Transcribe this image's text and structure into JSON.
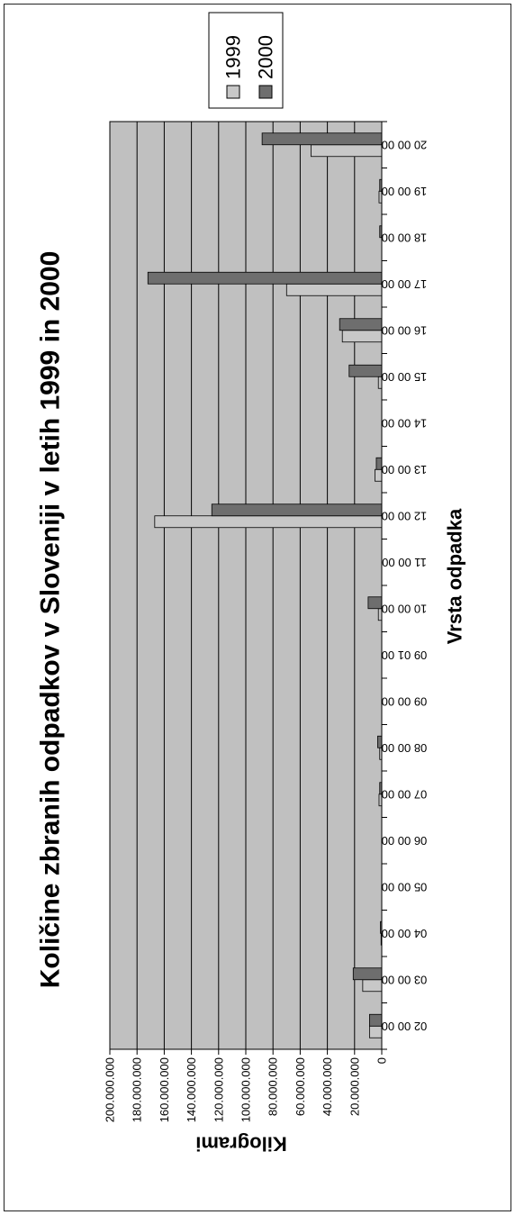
{
  "chart_data": {
    "type": "bar",
    "title": "Količine zbranih odpadkov v Sloveniji v letih 1999 in 2000",
    "xlabel": "Vrsta odpadka",
    "ylabel": "Kilogrami",
    "orientation": "rotated-90-clockwise",
    "ylim": [
      0,
      200000000
    ],
    "ytick_labels": [
      "0",
      "20.000.000",
      "40.000.000",
      "60.000.000",
      "80.000.000",
      "100.000.000",
      "120.000.000",
      "140.000.000",
      "160.000.000",
      "180.000.000",
      "200.000.000"
    ],
    "categories": [
      "02 00 00",
      "03 00 00",
      "04 00 00",
      "05 00 00",
      "06 00 00",
      "07 00 00",
      "08 00 00",
      "09 00 00",
      "09 01 00",
      "10 00 00",
      "11 00 00",
      "12 00 00",
      "13 00 00",
      "14 00 00",
      "15 00 00",
      "16 00 00",
      "17 00 00",
      "18 00 00",
      "19 00 00",
      "20 00 00"
    ],
    "series": [
      {
        "name": "1999",
        "color": "#c8c8c8",
        "values": [
          9000000,
          14000000,
          500000,
          0,
          0,
          2000000,
          1500000,
          0,
          0,
          2500000,
          0,
          167000000,
          5000000,
          0,
          2500000,
          29000000,
          70000000,
          0,
          2000000,
          52000000
        ]
      },
      {
        "name": "2000",
        "color": "#6e6e6e",
        "values": [
          9000000,
          21000000,
          1000000,
          0,
          0,
          1500000,
          3000000,
          0,
          0,
          10000000,
          0,
          125000000,
          4000000,
          0,
          24000000,
          31000000,
          172000000,
          1500000,
          1500000,
          88000000
        ]
      }
    ],
    "grid": true,
    "legend": "top-right",
    "plot_background": "#c0c0c0"
  }
}
